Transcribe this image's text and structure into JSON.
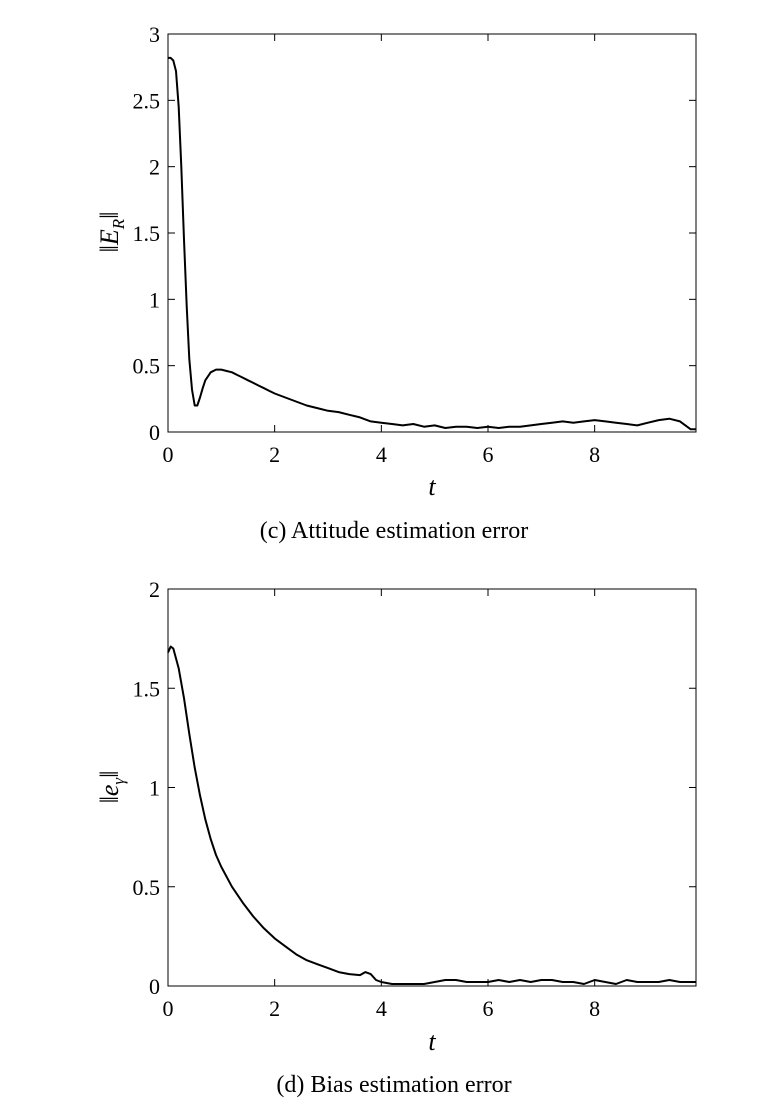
{
  "chart_data": [
    {
      "type": "line",
      "caption": "(c)  Attitude estimation error",
      "xlabel": "t",
      "ylabel": "‖E_R‖",
      "ylabel_main": "‖E",
      "ylabel_sub": "R",
      "ylabel_end": "‖",
      "xlim": [
        0,
        9.9
      ],
      "ylim": [
        0,
        3
      ],
      "xticks": [
        0,
        2,
        4,
        6,
        8
      ],
      "yticks": [
        0,
        0.5,
        1,
        1.5,
        2,
        2.5,
        3
      ],
      "xtick_labels": [
        "0",
        "2",
        "4",
        "6",
        "8"
      ],
      "ytick_labels": [
        "0",
        "0.5",
        "1",
        "1.5",
        "2",
        "2.5",
        "3"
      ],
      "grid": false,
      "series": [
        {
          "x": [
            0,
            0.05,
            0.1,
            0.15,
            0.2,
            0.25,
            0.3,
            0.35,
            0.4,
            0.45,
            0.5,
            0.55,
            0.6,
            0.65,
            0.7,
            0.8,
            0.9,
            1.0,
            1.1,
            1.2,
            1.3,
            1.4,
            1.5,
            1.6,
            1.7,
            1.8,
            1.9,
            2.0,
            2.2,
            2.4,
            2.6,
            2.8,
            3.0,
            3.2,
            3.4,
            3.6,
            3.8,
            4.0,
            4.2,
            4.4,
            4.6,
            4.8,
            5.0,
            5.2,
            5.4,
            5.6,
            5.8,
            6.0,
            6.2,
            6.4,
            6.6,
            6.8,
            7.0,
            7.2,
            7.4,
            7.6,
            7.8,
            8.0,
            8.2,
            8.4,
            8.6,
            8.8,
            9.0,
            9.2,
            9.4,
            9.6,
            9.8,
            9.9
          ],
          "y": [
            2.82,
            2.82,
            2.8,
            2.72,
            2.45,
            2.0,
            1.45,
            0.95,
            0.55,
            0.32,
            0.2,
            0.2,
            0.26,
            0.33,
            0.39,
            0.45,
            0.47,
            0.47,
            0.46,
            0.45,
            0.43,
            0.41,
            0.39,
            0.37,
            0.35,
            0.33,
            0.31,
            0.29,
            0.26,
            0.23,
            0.2,
            0.18,
            0.16,
            0.15,
            0.13,
            0.11,
            0.08,
            0.07,
            0.06,
            0.05,
            0.06,
            0.04,
            0.05,
            0.03,
            0.04,
            0.04,
            0.03,
            0.04,
            0.03,
            0.04,
            0.04,
            0.05,
            0.06,
            0.07,
            0.08,
            0.07,
            0.08,
            0.09,
            0.08,
            0.07,
            0.06,
            0.05,
            0.07,
            0.09,
            0.1,
            0.08,
            0.02,
            0.02
          ]
        }
      ]
    },
    {
      "type": "line",
      "caption": "(d)  Bias estimation error",
      "xlabel": "t",
      "ylabel": "‖e_γ‖",
      "ylabel_main": "‖e",
      "ylabel_sub": "γ",
      "ylabel_end": "‖",
      "xlim": [
        0,
        9.9
      ],
      "ylim": [
        0,
        2
      ],
      "xticks": [
        0,
        2,
        4,
        6,
        8
      ],
      "yticks": [
        0,
        0.5,
        1,
        1.5,
        2
      ],
      "xtick_labels": [
        "0",
        "2",
        "4",
        "6",
        "8"
      ],
      "ytick_labels": [
        "0",
        "0.5",
        "1",
        "1.5",
        "2"
      ],
      "grid": false,
      "series": [
        {
          "x": [
            0,
            0.05,
            0.1,
            0.2,
            0.3,
            0.4,
            0.5,
            0.6,
            0.7,
            0.8,
            0.9,
            1.0,
            1.2,
            1.4,
            1.6,
            1.8,
            2.0,
            2.2,
            2.4,
            2.6,
            2.8,
            3.0,
            3.2,
            3.4,
            3.6,
            3.7,
            3.8,
            3.9,
            4.0,
            4.2,
            4.4,
            4.6,
            4.8,
            5.0,
            5.2,
            5.4,
            5.6,
            5.8,
            6.0,
            6.2,
            6.4,
            6.6,
            6.8,
            7.0,
            7.2,
            7.4,
            7.6,
            7.8,
            8.0,
            8.2,
            8.4,
            8.6,
            8.8,
            9.0,
            9.2,
            9.4,
            9.6,
            9.8,
            9.9
          ],
          "y": [
            1.68,
            1.71,
            1.7,
            1.6,
            1.45,
            1.27,
            1.1,
            0.96,
            0.84,
            0.74,
            0.66,
            0.6,
            0.5,
            0.42,
            0.35,
            0.29,
            0.24,
            0.2,
            0.16,
            0.13,
            0.11,
            0.09,
            0.07,
            0.06,
            0.055,
            0.07,
            0.06,
            0.03,
            0.02,
            0.01,
            0.01,
            0.01,
            0.01,
            0.02,
            0.03,
            0.03,
            0.02,
            0.02,
            0.02,
            0.03,
            0.02,
            0.03,
            0.02,
            0.03,
            0.03,
            0.02,
            0.02,
            0.01,
            0.03,
            0.02,
            0.01,
            0.03,
            0.02,
            0.02,
            0.02,
            0.03,
            0.02,
            0.02,
            0.02
          ]
        }
      ]
    }
  ]
}
